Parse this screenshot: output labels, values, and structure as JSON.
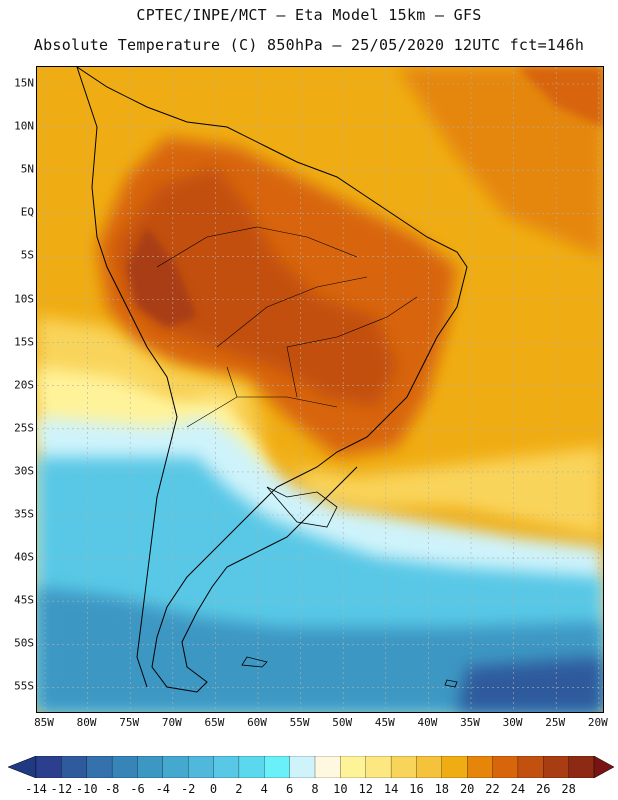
{
  "header": {
    "line1": "CPTEC/INPE/MCT –  Eta Model 15km – GFS",
    "line2": "Absolute Temperature (C) 850hPa – 25/05/2020 12UTC fct=146h"
  },
  "map": {
    "lat_labels": [
      "15N",
      "10N",
      "5N",
      "EQ",
      "5S",
      "10S",
      "15S",
      "20S",
      "25S",
      "30S",
      "35S",
      "40S",
      "45S",
      "50S",
      "55S"
    ],
    "lon_labels": [
      "85W",
      "80W",
      "75W",
      "70W",
      "65W",
      "60W",
      "55W",
      "50W",
      "45W",
      "40W",
      "35W",
      "30W",
      "25W",
      "20W"
    ],
    "field": "Absolute Temperature (C) at 850hPa"
  },
  "colorbar": {
    "labels": [
      "-14",
      "-12",
      "-10",
      "-8",
      "-6",
      "-4",
      "-2",
      "0",
      "2",
      "4",
      "6",
      "8",
      "10",
      "12",
      "14",
      "16",
      "18",
      "20",
      "22",
      "24",
      "26",
      "28"
    ],
    "colors": [
      "#2b3f8e",
      "#2f5a9c",
      "#3372ac",
      "#3784b8",
      "#3c97c3",
      "#45a8cf",
      "#4fb8db",
      "#58c8e6",
      "#5cd8ee",
      "#6af0f8",
      "#cff3fb",
      "#fff8e0",
      "#fff39a",
      "#fde781",
      "#f9d45a",
      "#f4c23b",
      "#f0ad13",
      "#e5860b",
      "#d8650c",
      "#c2500f",
      "#a83c12",
      "#8c2a14"
    ],
    "under_color": "#1f3a82",
    "over_color": "#7a1414"
  },
  "palette": {
    "background_warm": "#f0ad13",
    "deep_warm": "#c2500f",
    "mid_warm": "#d8650c",
    "cool": "#4fb8db",
    "deep_cool": "#3784b8",
    "land_line": "#000000"
  }
}
